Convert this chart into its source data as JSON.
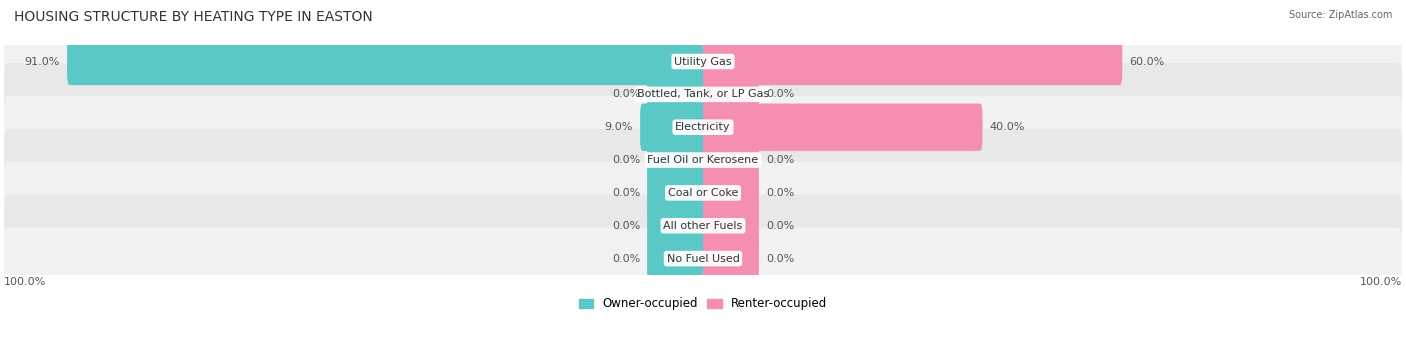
{
  "title": "HOUSING STRUCTURE BY HEATING TYPE IN EASTON",
  "source": "Source: ZipAtlas.com",
  "categories": [
    "Utility Gas",
    "Bottled, Tank, or LP Gas",
    "Electricity",
    "Fuel Oil or Kerosene",
    "Coal or Coke",
    "All other Fuels",
    "No Fuel Used"
  ],
  "owner_values": [
    91.0,
    0.0,
    9.0,
    0.0,
    0.0,
    0.0,
    0.0
  ],
  "renter_values": [
    60.0,
    0.0,
    40.0,
    0.0,
    0.0,
    0.0,
    0.0
  ],
  "owner_color": "#5BC8C8",
  "renter_color": "#F48FB1",
  "row_bg_color_light": "#F2F2F2",
  "row_bg_color_dark": "#E8E8E8",
  "axis_label_left": "100.0%",
  "axis_label_right": "100.0%",
  "max_value": 100.0,
  "stub_value": 8.0,
  "title_fontsize": 10,
  "source_fontsize": 7,
  "label_fontsize": 8,
  "category_fontsize": 8,
  "value_fontsize": 8,
  "legend_fontsize": 8.5
}
